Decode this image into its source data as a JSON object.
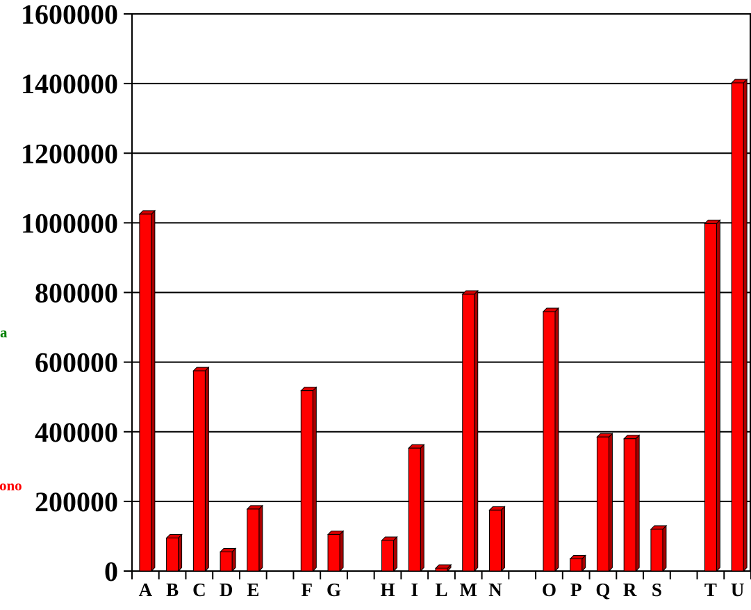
{
  "colors": {
    "bar_front": "#ff0000",
    "bar_side": "#aa0000",
    "bar_top": "#dd0000",
    "grid": "#000000"
  },
  "side_labels": {
    "green_text": "a",
    "green_color": "#008000",
    "red_text": "ono",
    "red_color": "#ff0000"
  },
  "chart_data": {
    "type": "bar",
    "title": "",
    "xlabel": "",
    "ylabel": "",
    "ylim": [
      0,
      1600000
    ],
    "yticks": [
      "0",
      "200000",
      "400000",
      "600000",
      "800000",
      "1000000",
      "1200000",
      "1400000",
      "1600000"
    ],
    "grid": true,
    "categories": [
      "A",
      "B",
      "C",
      "D",
      "E",
      "",
      "F",
      "G",
      "",
      "H",
      "I",
      "L",
      "M",
      "N",
      "",
      "O",
      "P",
      "Q",
      "R",
      "S",
      "",
      "T",
      "U"
    ],
    "values": [
      1025000,
      95000,
      575000,
      55000,
      178000,
      null,
      518000,
      105000,
      null,
      88000,
      353000,
      8000,
      795000,
      175000,
      null,
      745000,
      35000,
      385000,
      380000,
      120000,
      null,
      998000,
      1402000
    ]
  }
}
